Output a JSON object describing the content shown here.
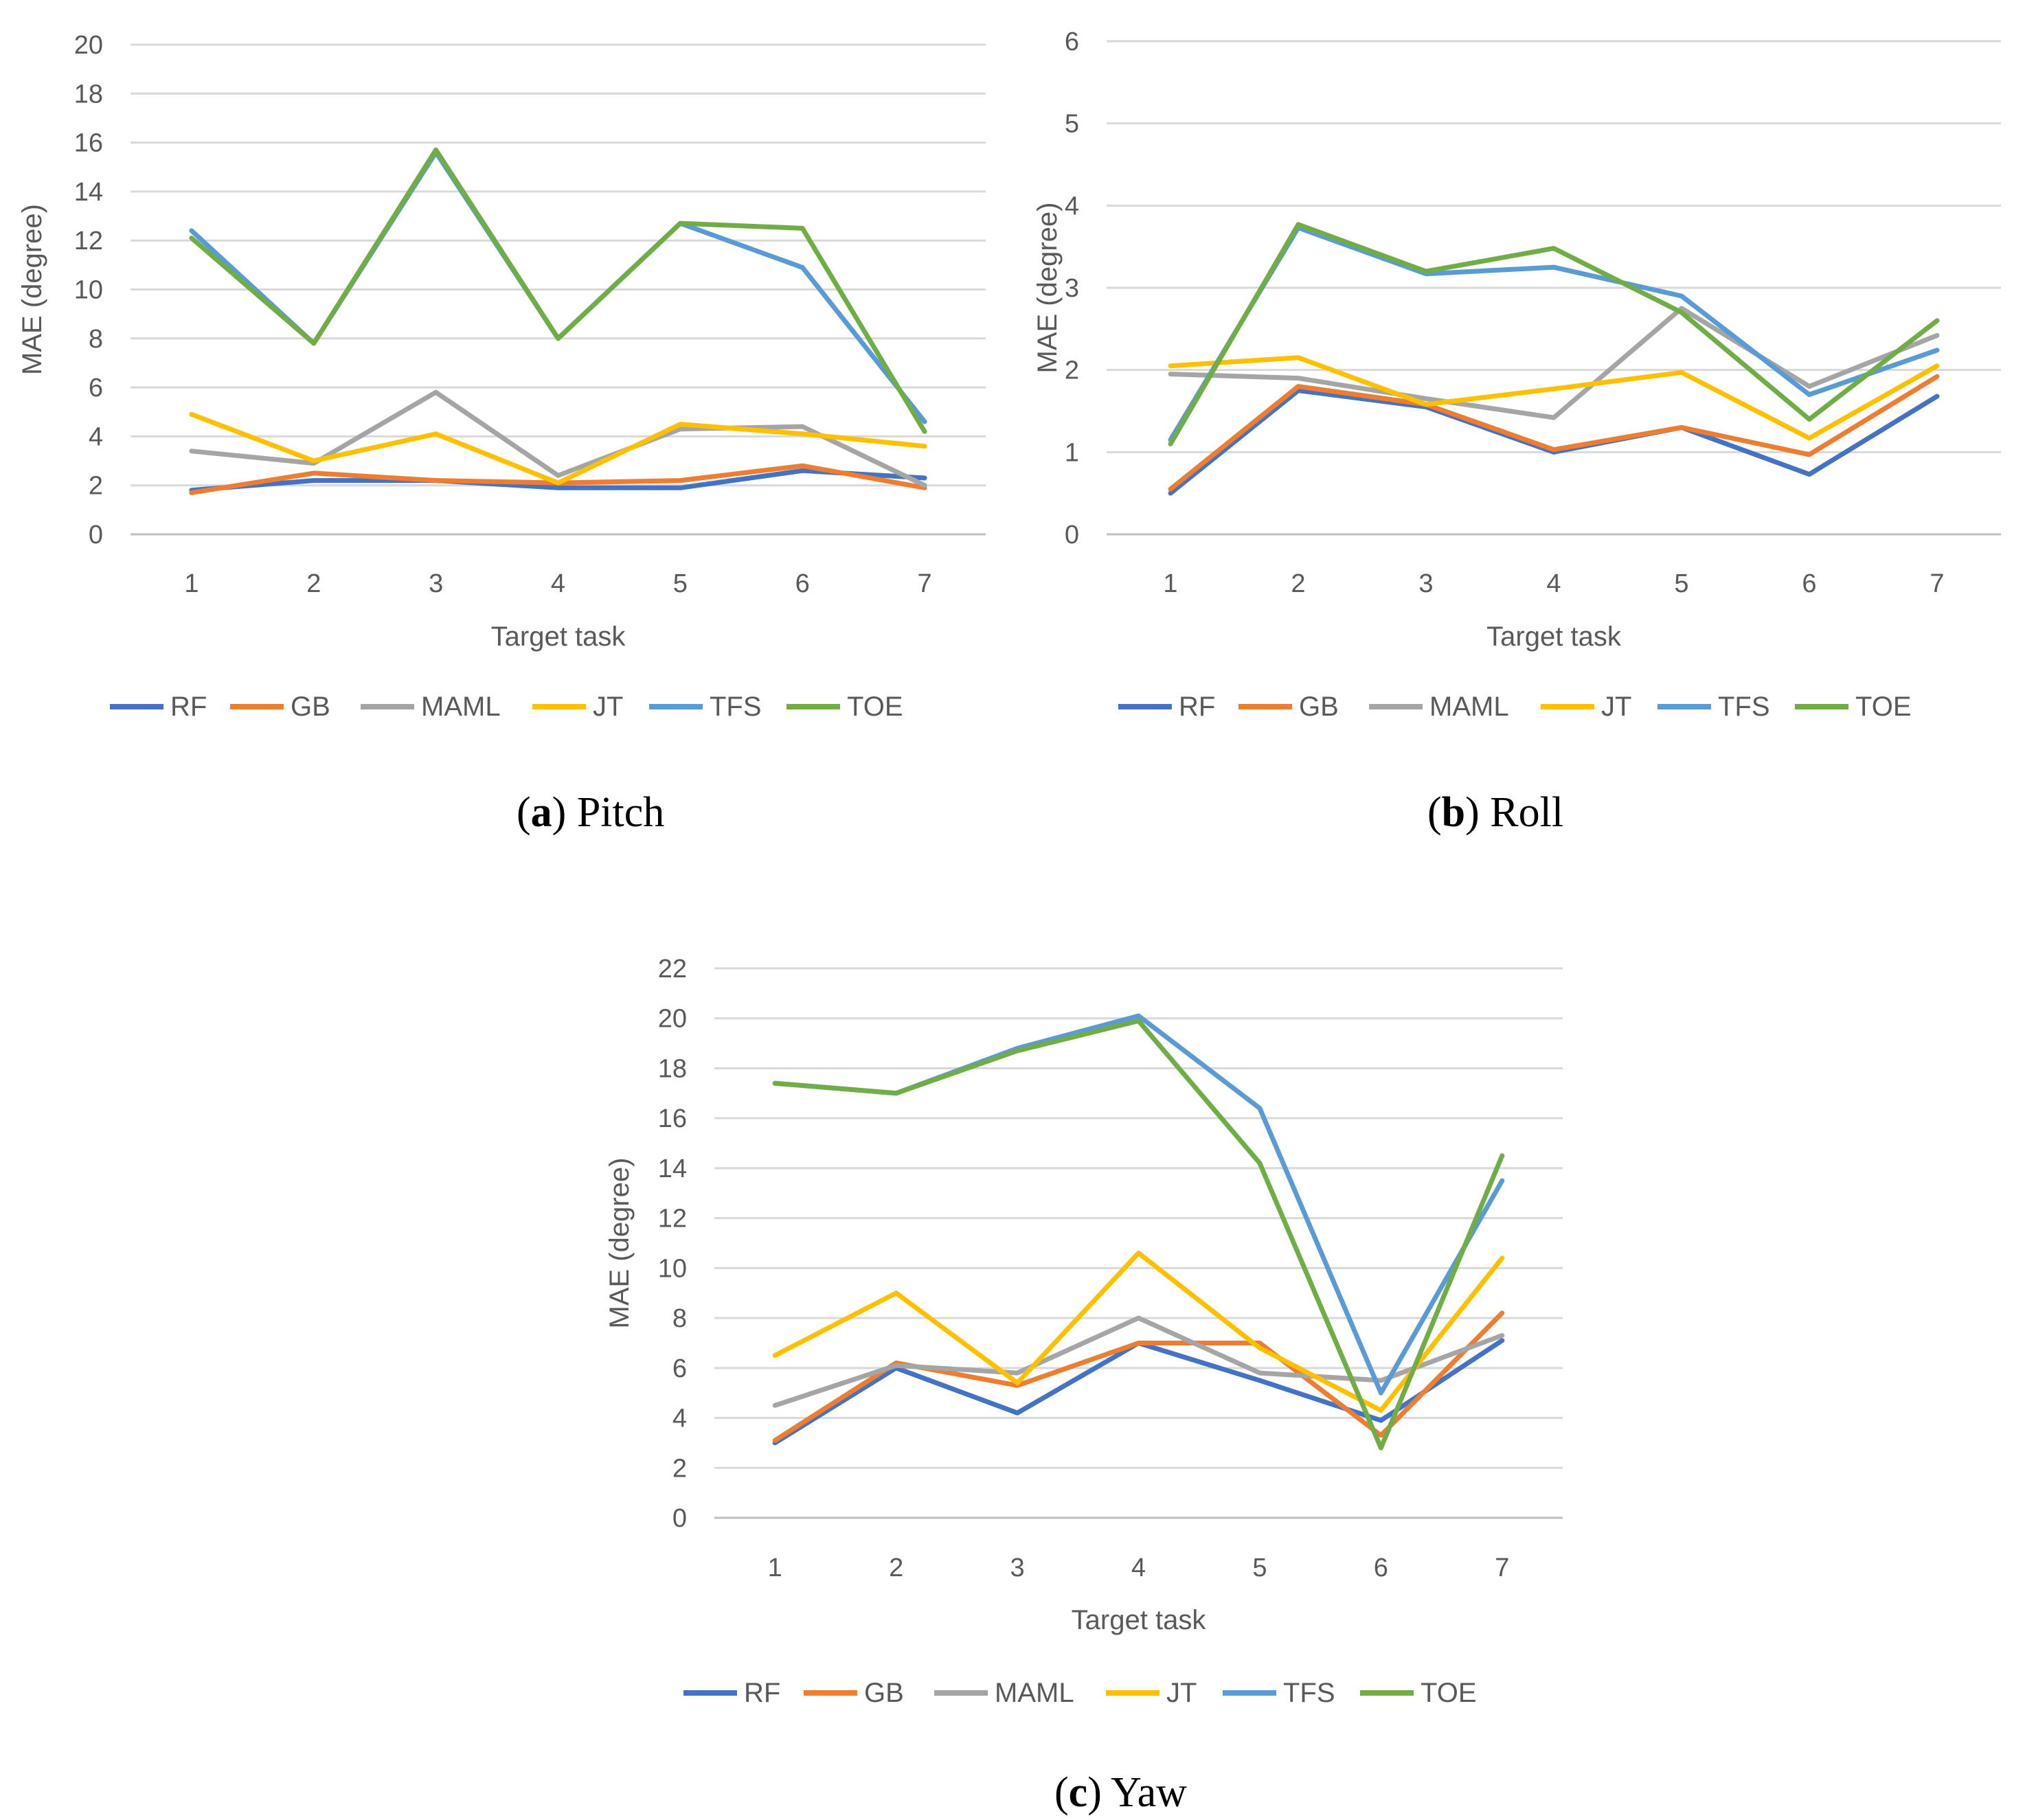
{
  "chart_data": [
    {
      "id": "pitch",
      "type": "line",
      "caption_letter": "a",
      "caption_label": "Pitch",
      "xlabel": "Target task",
      "ylabel": "MAE (degree)",
      "categories": [
        "1",
        "2",
        "3",
        "4",
        "5",
        "6",
        "7"
      ],
      "ylim": [
        0,
        20
      ],
      "yticks": [
        0,
        2,
        4,
        6,
        8,
        10,
        12,
        14,
        16,
        18,
        20
      ],
      "grid": true,
      "legend_position": "bottom",
      "series": [
        {
          "name": "RF",
          "color": "#4472C4",
          "values": [
            1.8,
            2.2,
            2.2,
            1.9,
            1.9,
            2.6,
            2.3
          ]
        },
        {
          "name": "GB",
          "color": "#ED7D31",
          "values": [
            1.7,
            2.5,
            2.2,
            2.1,
            2.2,
            2.8,
            1.9
          ]
        },
        {
          "name": "MAML",
          "color": "#A5A5A5",
          "values": [
            3.4,
            2.9,
            5.8,
            2.4,
            4.3,
            4.4,
            2.0
          ]
        },
        {
          "name": "JT",
          "color": "#FFC000",
          "values": [
            4.9,
            3.0,
            4.1,
            2.1,
            4.5,
            4.1,
            3.6
          ]
        },
        {
          "name": "TFS",
          "color": "#5B9BD5",
          "values": [
            12.4,
            7.8,
            15.6,
            8.0,
            12.7,
            10.9,
            4.6
          ]
        },
        {
          "name": "TOE",
          "color": "#70AD47",
          "values": [
            12.1,
            7.8,
            15.7,
            8.0,
            12.7,
            12.5,
            4.2
          ]
        }
      ]
    },
    {
      "id": "roll",
      "type": "line",
      "caption_letter": "b",
      "caption_label": "Roll",
      "xlabel": "Target task",
      "ylabel": "MAE (degree)",
      "categories": [
        "1",
        "2",
        "3",
        "4",
        "5",
        "6",
        "7"
      ],
      "ylim": [
        0,
        6
      ],
      "yticks": [
        0,
        1,
        2,
        3,
        4,
        5,
        6
      ],
      "grid": true,
      "legend_position": "bottom",
      "series": [
        {
          "name": "RF",
          "color": "#4472C4",
          "values": [
            0.5,
            1.75,
            1.55,
            1.0,
            1.3,
            0.73,
            1.68
          ]
        },
        {
          "name": "GB",
          "color": "#ED7D31",
          "values": [
            0.55,
            1.8,
            1.58,
            1.03,
            1.3,
            0.97,
            1.92
          ]
        },
        {
          "name": "MAML",
          "color": "#A5A5A5",
          "values": [
            1.95,
            1.9,
            1.65,
            1.42,
            2.75,
            1.8,
            2.42
          ]
        },
        {
          "name": "JT",
          "color": "#FFC000",
          "values": [
            2.05,
            2.15,
            1.58,
            1.77,
            1.97,
            1.17,
            2.05
          ]
        },
        {
          "name": "TFS",
          "color": "#5B9BD5",
          "values": [
            1.15,
            3.73,
            3.17,
            3.25,
            2.9,
            1.7,
            2.24
          ]
        },
        {
          "name": "TOE",
          "color": "#70AD47",
          "values": [
            1.1,
            3.77,
            3.2,
            3.48,
            2.7,
            1.4,
            2.6
          ]
        }
      ]
    },
    {
      "id": "yaw",
      "type": "line",
      "caption_letter": "c",
      "caption_label": "Yaw",
      "xlabel": "Target task",
      "ylabel": "MAE (degree)",
      "categories": [
        "1",
        "2",
        "3",
        "4",
        "5",
        "6",
        "7"
      ],
      "ylim": [
        0,
        22
      ],
      "yticks": [
        0,
        2,
        4,
        6,
        8,
        10,
        12,
        14,
        16,
        18,
        20,
        22
      ],
      "grid": true,
      "legend_position": "bottom",
      "series": [
        {
          "name": "RF",
          "color": "#4472C4",
          "values": [
            3.0,
            6.0,
            4.2,
            7.0,
            5.5,
            3.9,
            7.1
          ]
        },
        {
          "name": "GB",
          "color": "#ED7D31",
          "values": [
            3.1,
            6.2,
            5.3,
            7.0,
            7.0,
            3.3,
            8.2
          ]
        },
        {
          "name": "MAML",
          "color": "#A5A5A5",
          "values": [
            4.5,
            6.1,
            5.8,
            8.0,
            5.8,
            5.5,
            7.3
          ]
        },
        {
          "name": "JT",
          "color": "#FFC000",
          "values": [
            6.5,
            9.0,
            5.4,
            10.6,
            6.8,
            4.3,
            10.4
          ]
        },
        {
          "name": "TFS",
          "color": "#5B9BD5",
          "values": [
            17.4,
            17.0,
            18.8,
            20.1,
            16.4,
            5.0,
            13.5
          ]
        },
        {
          "name": "TOE",
          "color": "#70AD47",
          "values": [
            17.4,
            17.0,
            18.7,
            19.9,
            14.2,
            2.8,
            14.5
          ]
        }
      ]
    }
  ]
}
